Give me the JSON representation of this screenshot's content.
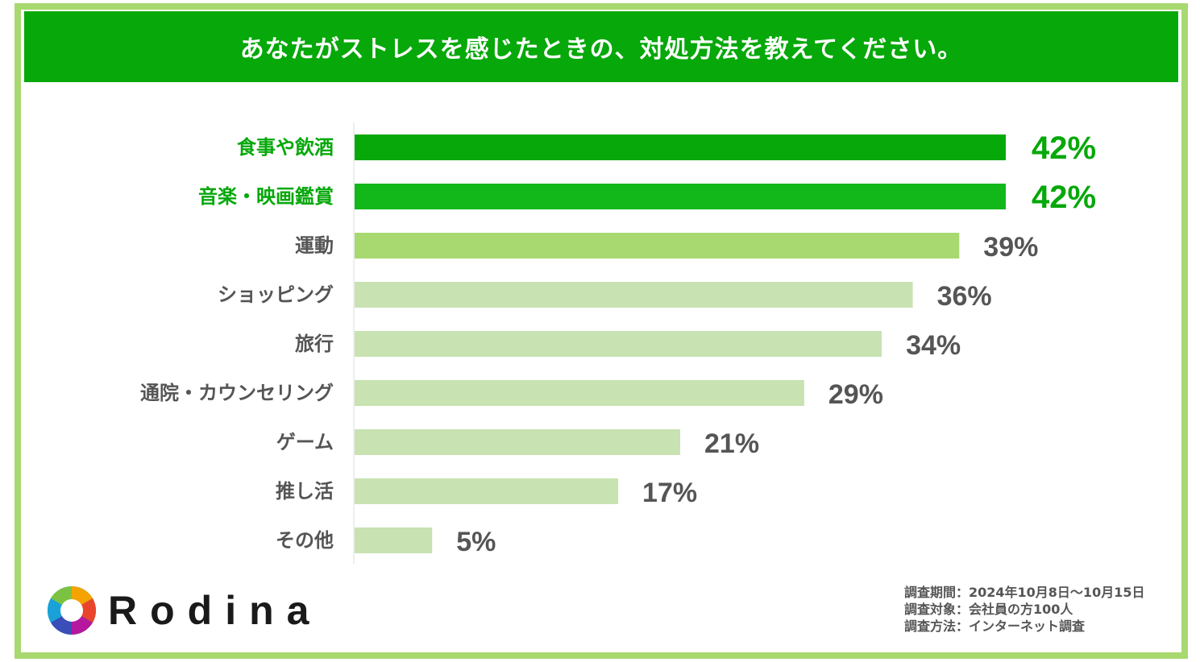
{
  "header": {
    "title": "あなたがストレスを感じたときの、対処方法を教えてください。"
  },
  "chart_data": {
    "type": "bar",
    "orientation": "horizontal",
    "categories": [
      "食事や飲酒",
      "音楽・映画鑑賞",
      "運動",
      "ショッピング",
      "旅行",
      "通院・カウンセリング",
      "ゲーム",
      "推し活",
      "その他"
    ],
    "values": [
      42,
      42,
      39,
      36,
      34,
      29,
      21,
      17,
      5
    ],
    "value_labels": [
      "42%",
      "42%",
      "39%",
      "36%",
      "34%",
      "29%",
      "21%",
      "17%",
      "5%"
    ],
    "xlim": [
      0,
      42
    ],
    "unit": "%",
    "grid": false,
    "legend": "none",
    "colors": [
      "#06a80a",
      "#12b81a",
      "#a8d870",
      "#c8e2b2",
      "#c8e2b2",
      "#c8e2b2",
      "#c8e2b2",
      "#c8e2b2",
      "#c8e2b2"
    ],
    "label_colors": [
      "#06a80a",
      "#06a80a",
      "#555555",
      "#555555",
      "#555555",
      "#555555",
      "#555555",
      "#555555",
      "#555555"
    ]
  },
  "logo": {
    "text": "Rodina",
    "icon": "aperture-logo-icon"
  },
  "notes": [
    "調査期間：2024年10月8日～10月15日",
    "調査対象：会社員の方100人",
    "調査方法：インターネット調査"
  ]
}
